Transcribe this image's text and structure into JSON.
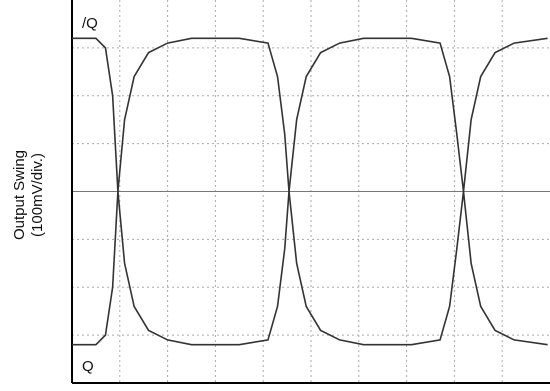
{
  "chart_data": {
    "type": "line",
    "ylabel": [
      "Output Swing",
      "(100mV/div.)"
    ],
    "x": [
      0,
      0.5,
      0.7,
      0.85,
      0.96,
      1.1,
      1.3,
      1.6,
      2.0,
      2.5,
      3.5,
      4.1,
      4.3,
      4.45,
      4.54,
      4.7,
      4.9,
      5.2,
      5.6,
      6.1,
      7.1,
      7.7,
      7.9,
      8.05,
      8.19,
      8.35,
      8.55,
      8.85,
      9.25,
      9.95
    ],
    "series": [
      {
        "name": "/Q",
        "color": "#333333",
        "values": [
          3.2,
          3.2,
          3.0,
          2.0,
          0,
          -1.5,
          -2.4,
          -2.9,
          -3.1,
          -3.2,
          -3.2,
          -3.1,
          -2.4,
          -1.2,
          0,
          1.5,
          2.4,
          2.9,
          3.1,
          3.2,
          3.2,
          3.1,
          2.4,
          1.2,
          0,
          -1.5,
          -2.4,
          -2.9,
          -3.1,
          -3.2
        ]
      },
      {
        "name": "Q",
        "color": "#333333",
        "values": [
          -3.2,
          -3.2,
          -3.0,
          -2.0,
          0,
          1.5,
          2.4,
          2.9,
          3.1,
          3.2,
          3.2,
          3.1,
          2.4,
          1.2,
          0,
          -1.5,
          -2.4,
          -2.9,
          -3.1,
          -3.2,
          -3.2,
          -3.1,
          -2.4,
          -1.2,
          0,
          1.5,
          2.4,
          2.9,
          3.1,
          3.2
        ]
      }
    ],
    "xlim": [
      0,
      10
    ],
    "ylim": [
      -4,
      4
    ],
    "grid": true
  }
}
